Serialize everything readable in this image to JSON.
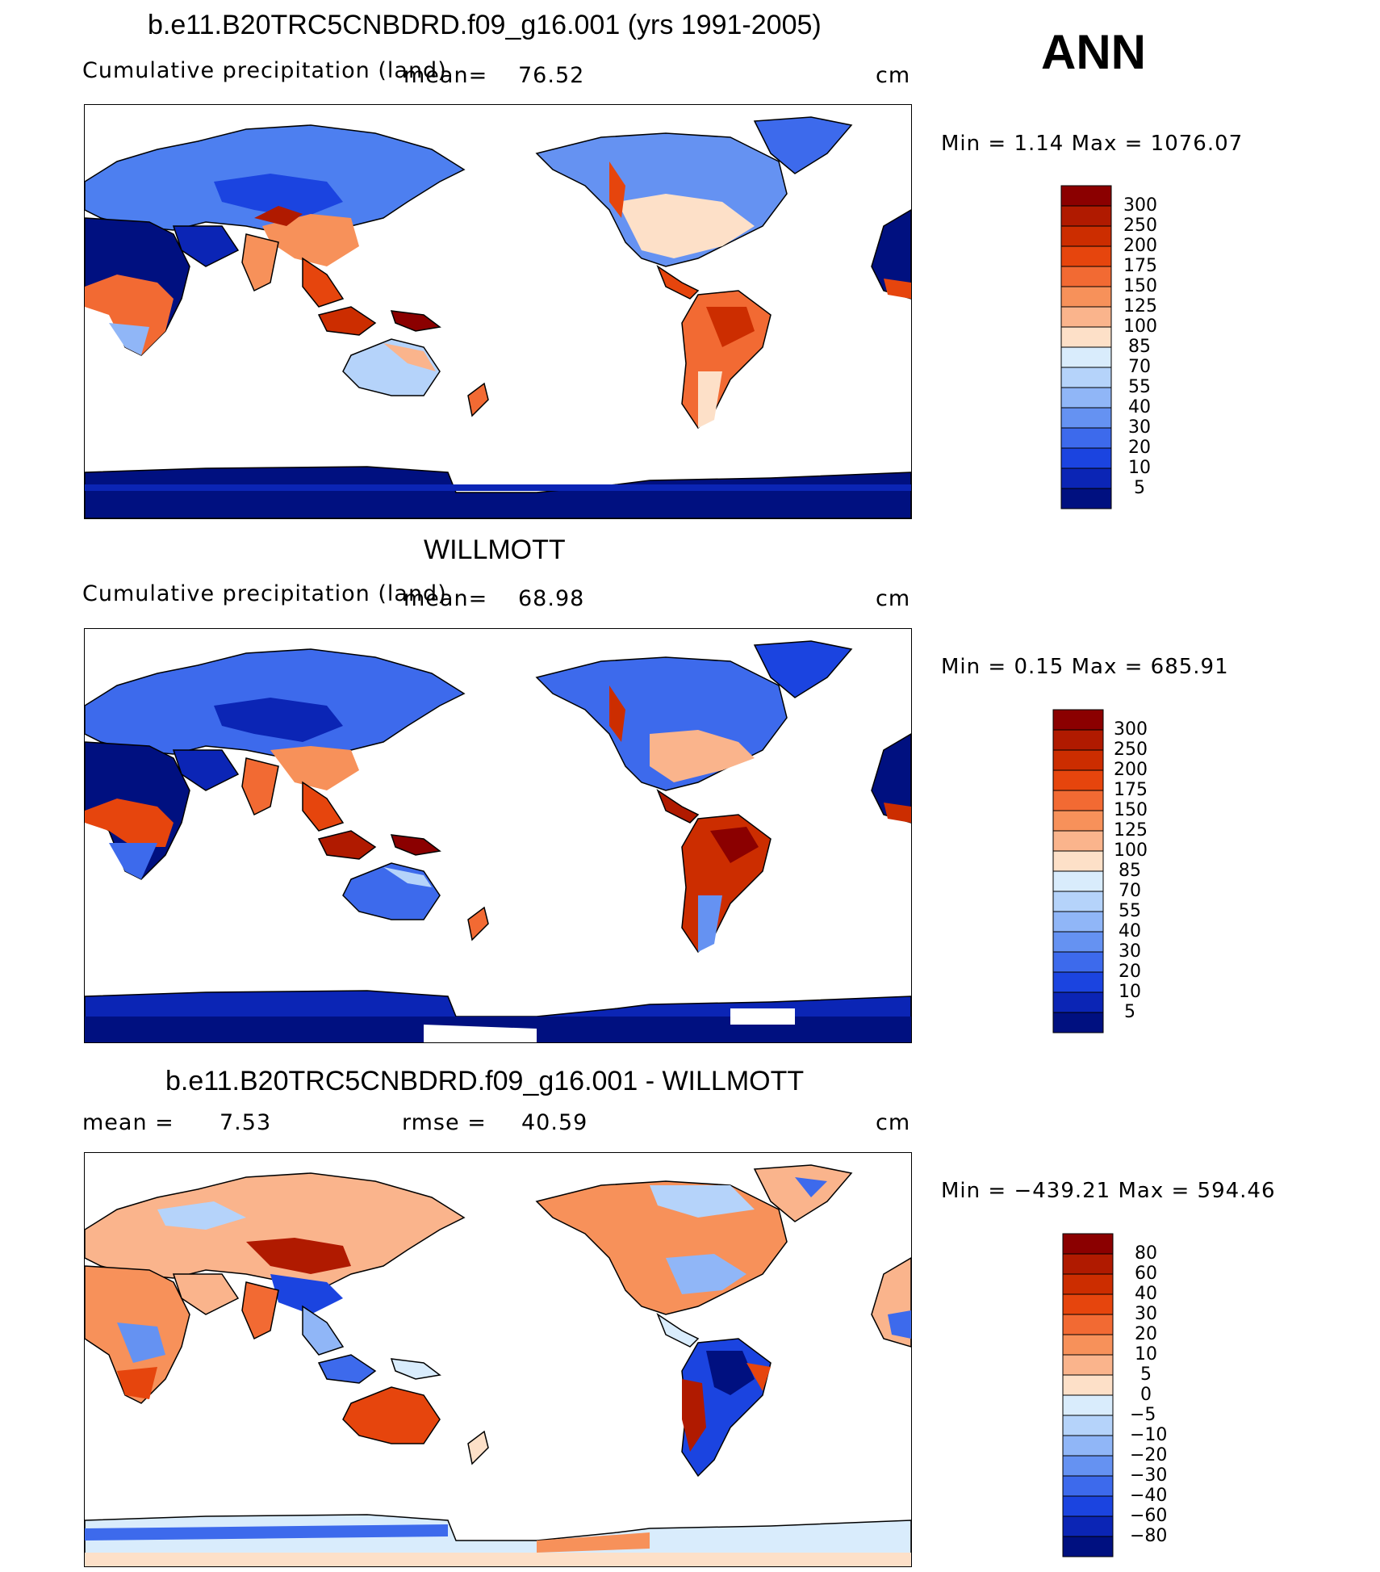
{
  "season": "ANN",
  "panels": [
    {
      "title": "b.e11.B20TRC5CNBDRD.f09_g16.001 (yrs 1991-2005)",
      "left_label": "Cumulative precipitation (land)",
      "mean_label": "mean=",
      "mean_value": "76.52",
      "units": "cm",
      "minmax": "Min =    1.14 Max = 1076.07",
      "colorbar": {
        "labels": [
          "300",
          "250",
          "200",
          "175",
          "150",
          "125",
          "100",
          "85",
          "70",
          "55",
          "40",
          "30",
          "20",
          "10",
          "5"
        ],
        "colors": [
          "#8b0000",
          "#b01a00",
          "#cc2d00",
          "#e6450d",
          "#f26a33",
          "#f7915a",
          "#fab48c",
          "#fde0c8",
          "#d9ecfc",
          "#b5d3fa",
          "#90b6f7",
          "#6592f2",
          "#3d6aec",
          "#1b44e0",
          "#0b25b5",
          "#001080"
        ]
      }
    },
    {
      "title": "WILLMOTT",
      "left_label": "Cumulative precipitation (land)",
      "mean_label": "mean=",
      "mean_value": "68.98",
      "units": "cm",
      "minmax": "Min =    0.15 Max = 685.91",
      "colorbar": {
        "labels": [
          "300",
          "250",
          "200",
          "175",
          "150",
          "125",
          "100",
          "85",
          "70",
          "55",
          "40",
          "30",
          "20",
          "10",
          "5"
        ],
        "colors": [
          "#8b0000",
          "#b01a00",
          "#cc2d00",
          "#e6450d",
          "#f26a33",
          "#f7915a",
          "#fab48c",
          "#fde0c8",
          "#d9ecfc",
          "#b5d3fa",
          "#90b6f7",
          "#6592f2",
          "#3d6aec",
          "#1b44e0",
          "#0b25b5",
          "#001080"
        ]
      }
    },
    {
      "title": "b.e11.B20TRC5CNBDRD.f09_g16.001 - WILLMOTT",
      "mean_label": "mean =",
      "mean_value": "7.53",
      "rmse_label": "rmse =",
      "rmse_value": "40.59",
      "units": "cm",
      "minmax": "Min = −439.21 Max = 594.46",
      "colorbar": {
        "labels": [
          "80",
          "60",
          "40",
          "30",
          "20",
          "10",
          "5",
          "0",
          "−5",
          "−10",
          "−20",
          "−30",
          "−40",
          "−60",
          "−80"
        ],
        "colors": [
          "#8b0000",
          "#b01a00",
          "#cc2d00",
          "#e6450d",
          "#f26a33",
          "#f7915a",
          "#fab48c",
          "#fde0c8",
          "#d9ecfc",
          "#b5d3fa",
          "#90b6f7",
          "#6592f2",
          "#3d6aec",
          "#1b44e0",
          "#0b25b5",
          "#001080"
        ]
      }
    }
  ],
  "colors": {
    "ocean": "#ffffff",
    "deep_red": "#8b0000",
    "deep_blue": "#001080",
    "border": "#000000"
  }
}
